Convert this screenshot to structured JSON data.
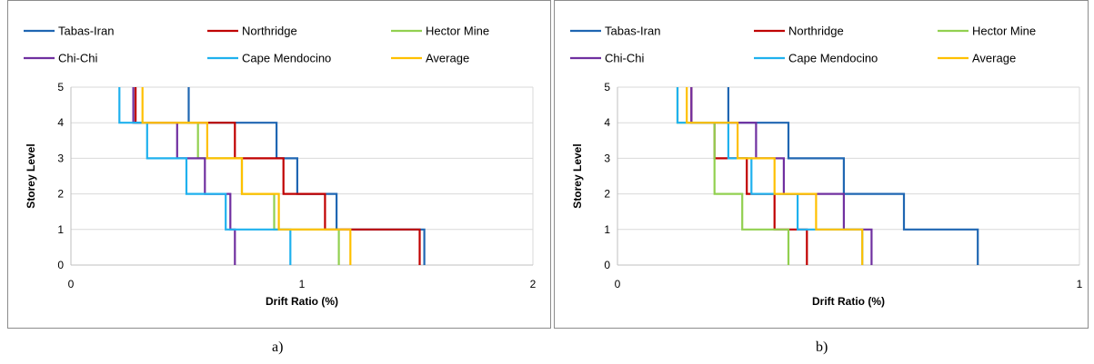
{
  "colors": {
    "Tabas-Iran": "#1F66B2",
    "Northridge": "#C00000",
    "Hector Mine": "#92D050",
    "Chi-Chi": "#7030A0",
    "Cape Mendocino": "#1FB1EE",
    "Average": "#FFC000"
  },
  "captions": [
    "a)",
    "b)"
  ],
  "chart_data": [
    {
      "type": "line",
      "title": "",
      "xlabel": "Drift Ratio (%)",
      "ylabel": "Storey Level",
      "xlim": [
        0,
        2
      ],
      "ylim": [
        0,
        5
      ],
      "xticks": [
        "0",
        "1",
        "2"
      ],
      "yticks": [
        "0",
        "1",
        "2",
        "3",
        "4",
        "5"
      ],
      "grid": "horizontal",
      "legend_position": "top",
      "step": "storey-profile",
      "series": [
        {
          "name": "Tabas-Iran",
          "values": [
            1.53,
            1.15,
            0.98,
            0.89,
            0.51
          ]
        },
        {
          "name": "Northridge",
          "values": [
            1.51,
            1.1,
            0.92,
            0.71,
            0.28
          ]
        },
        {
          "name": "Hector Mine",
          "values": [
            1.16,
            0.88,
            0.74,
            0.55,
            0.27
          ]
        },
        {
          "name": "Chi-Chi",
          "values": [
            0.71,
            0.69,
            0.58,
            0.46,
            0.27
          ]
        },
        {
          "name": "Cape Mendocino",
          "values": [
            0.95,
            0.67,
            0.5,
            0.33,
            0.21
          ]
        },
        {
          "name": "Average",
          "values": [
            1.21,
            0.9,
            0.74,
            0.59,
            0.31
          ]
        }
      ]
    },
    {
      "type": "line",
      "title": "",
      "xlabel": "Drift Ratio (%)",
      "ylabel": "Storey Level",
      "xlim": [
        0,
        1
      ],
      "ylim": [
        0,
        5
      ],
      "xticks": [
        "0",
        "1"
      ],
      "yticks": [
        "0",
        "1",
        "2",
        "3",
        "4",
        "5"
      ],
      "grid": "horizontal",
      "legend_position": "top",
      "step": "storey-profile",
      "series": [
        {
          "name": "Tabas-Iran",
          "values": [
            0.78,
            0.62,
            0.49,
            0.37,
            0.24
          ]
        },
        {
          "name": "Northridge",
          "values": [
            0.41,
            0.34,
            0.28,
            0.21,
            0.16
          ]
        },
        {
          "name": "Hector Mine",
          "values": [
            0.37,
            0.27,
            0.21,
            0.21,
            0.13
          ]
        },
        {
          "name": "Chi-Chi",
          "values": [
            0.55,
            0.49,
            0.36,
            0.3,
            0.16
          ]
        },
        {
          "name": "Cape Mendocino",
          "values": [
            0.53,
            0.39,
            0.29,
            0.24,
            0.13
          ]
        },
        {
          "name": "Average",
          "values": [
            0.53,
            0.43,
            0.34,
            0.26,
            0.15
          ]
        }
      ]
    }
  ]
}
